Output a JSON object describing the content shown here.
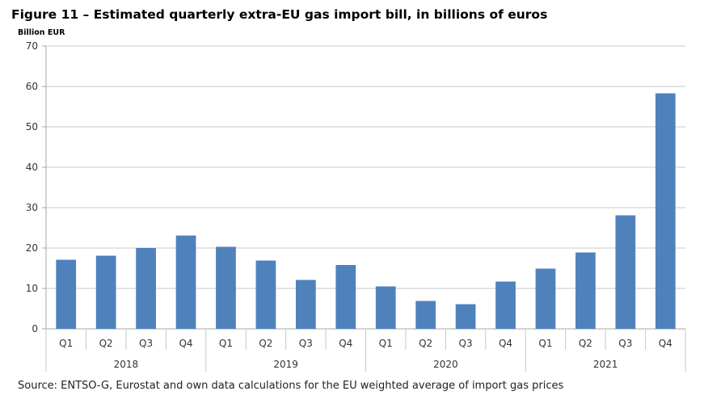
{
  "chart_data": {
    "type": "bar",
    "title": "Figure 11 – Estimated quarterly extra-EU gas import bill, in billions of euros",
    "ylabel": "Billion EUR",
    "xlabel": "",
    "ylim": [
      0,
      70
    ],
    "yticks": [
      0,
      10,
      20,
      30,
      40,
      50,
      60,
      70
    ],
    "grid": true,
    "bar_color": "#4f81bd",
    "years": [
      "2018",
      "2019",
      "2020",
      "2021"
    ],
    "quarters": [
      "Q1",
      "Q2",
      "Q3",
      "Q4"
    ],
    "categories": [
      "2018 Q1",
      "2018 Q2",
      "2018 Q3",
      "2018 Q4",
      "2019 Q1",
      "2019 Q2",
      "2019 Q3",
      "2019 Q4",
      "2020 Q1",
      "2020 Q2",
      "2020 Q3",
      "2020 Q4",
      "2021 Q1",
      "2021 Q2",
      "2021 Q3",
      "2021 Q4"
    ],
    "values": [
      17.1,
      18.1,
      20.0,
      23.1,
      20.3,
      16.9,
      12.1,
      15.8,
      10.5,
      6.9,
      6.1,
      11.7,
      14.9,
      18.9,
      28.1,
      58.3
    ],
    "source": "Source: ENTSO-G, Eurostat and own data calculations for the EU weighted average of import gas prices"
  }
}
